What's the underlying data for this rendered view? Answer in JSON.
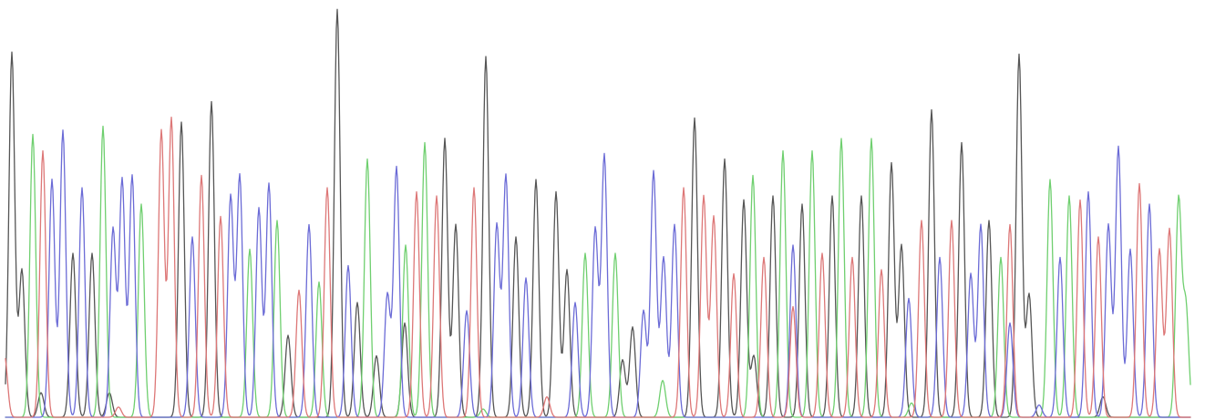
{
  "chart_data": {
    "type": "line",
    "title": "",
    "xlabel": "",
    "ylabel": "",
    "grid": false,
    "legend": "none",
    "ylim": [
      0,
      1000
    ],
    "series": [
      {
        "color": "#555555",
        "peaks": [
          [
            13,
            890
          ],
          [
            24,
            360
          ],
          [
            45,
            60
          ],
          [
            80,
            400
          ],
          [
            101,
            400
          ],
          [
            120,
            60
          ],
          [
            199,
            720
          ],
          [
            232,
            770
          ],
          [
            316,
            200
          ],
          [
            370,
            995
          ],
          [
            392,
            280
          ],
          [
            413,
            150
          ],
          [
            444,
            230
          ],
          [
            488,
            680
          ],
          [
            500,
            470
          ],
          [
            533,
            880
          ],
          [
            566,
            440
          ],
          [
            588,
            580
          ],
          [
            610,
            550
          ],
          [
            622,
            360
          ],
          [
            683,
            140
          ],
          [
            694,
            220
          ],
          [
            762,
            730
          ],
          [
            795,
            630
          ],
          [
            816,
            530
          ],
          [
            827,
            150
          ],
          [
            848,
            540
          ],
          [
            880,
            520
          ],
          [
            913,
            540
          ],
          [
            945,
            540
          ],
          [
            978,
            620
          ],
          [
            989,
            420
          ],
          [
            1022,
            750
          ],
          [
            1055,
            670
          ],
          [
            1085,
            480
          ],
          [
            1118,
            885
          ],
          [
            1129,
            300
          ],
          [
            1210,
            50
          ]
        ]
      },
      {
        "color": "#6fcf6f",
        "peaks": [
          [
            36,
            690
          ],
          [
            113,
            710
          ],
          [
            155,
            520
          ],
          [
            274,
            410
          ],
          [
            304,
            480
          ],
          [
            350,
            330
          ],
          [
            403,
            630
          ],
          [
            445,
            420
          ],
          [
            466,
            670
          ],
          [
            530,
            20
          ],
          [
            642,
            400
          ],
          [
            675,
            400
          ],
          [
            727,
            90
          ],
          [
            826,
            590
          ],
          [
            859,
            650
          ],
          [
            891,
            650
          ],
          [
            923,
            680
          ],
          [
            956,
            680
          ],
          [
            1000,
            35
          ],
          [
            1098,
            390
          ],
          [
            1152,
            580
          ],
          [
            1173,
            540
          ],
          [
            1293,
            530
          ],
          [
            1301,
            270
          ]
        ]
      },
      {
        "color": "#6b6bd6",
        "peaks": [
          [
            57,
            580
          ],
          [
            69,
            700
          ],
          [
            90,
            560
          ],
          [
            124,
            460
          ],
          [
            134,
            580
          ],
          [
            145,
            590
          ],
          [
            211,
            440
          ],
          [
            253,
            540
          ],
          [
            263,
            590
          ],
          [
            284,
            510
          ],
          [
            295,
            570
          ],
          [
            339,
            470
          ],
          [
            382,
            370
          ],
          [
            425,
            300
          ],
          [
            435,
            610
          ],
          [
            512,
            260
          ],
          [
            545,
            470
          ],
          [
            555,
            590
          ],
          [
            577,
            340
          ],
          [
            631,
            280
          ],
          [
            653,
            460
          ],
          [
            663,
            640
          ],
          [
            706,
            260
          ],
          [
            717,
            600
          ],
          [
            728,
            390
          ],
          [
            740,
            470
          ],
          [
            870,
            420
          ],
          [
            997,
            290
          ],
          [
            1031,
            390
          ],
          [
            1065,
            350
          ],
          [
            1076,
            470
          ],
          [
            1108,
            230
          ],
          [
            1140,
            30
          ],
          [
            1163,
            390
          ],
          [
            1194,
            550
          ],
          [
            1216,
            470
          ],
          [
            1227,
            660
          ],
          [
            1240,
            410
          ],
          [
            1261,
            520
          ]
        ]
      },
      {
        "color": "#dd7777",
        "peaks": [
          [
            5,
            150
          ],
          [
            47,
            650
          ],
          [
            130,
            25
          ],
          [
            177,
            700
          ],
          [
            188,
            730
          ],
          [
            221,
            590
          ],
          [
            242,
            490
          ],
          [
            328,
            310
          ],
          [
            359,
            560
          ],
          [
            457,
            550
          ],
          [
            479,
            540
          ],
          [
            520,
            560
          ],
          [
            600,
            50
          ],
          [
            750,
            560
          ],
          [
            772,
            540
          ],
          [
            783,
            490
          ],
          [
            805,
            350
          ],
          [
            838,
            390
          ],
          [
            870,
            270
          ],
          [
            902,
            400
          ],
          [
            935,
            390
          ],
          [
            967,
            360
          ],
          [
            1011,
            480
          ],
          [
            1044,
            480
          ],
          [
            1108,
            470
          ],
          [
            1185,
            530
          ],
          [
            1205,
            440
          ],
          [
            1250,
            570
          ],
          [
            1272,
            410
          ],
          [
            1283,
            460
          ]
        ]
      }
    ]
  }
}
